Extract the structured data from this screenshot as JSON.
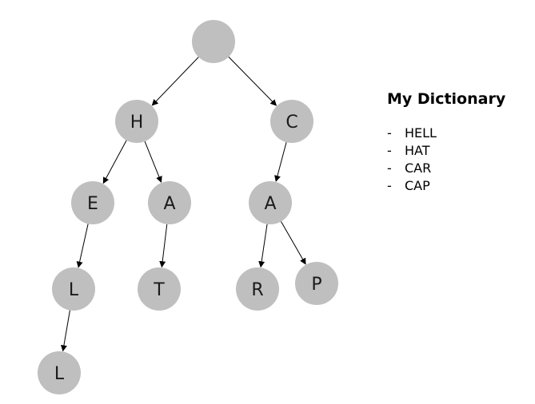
{
  "diagram": {
    "nodes": [
      {
        "id": "root",
        "label": ""
      },
      {
        "id": "h",
        "label": "H"
      },
      {
        "id": "c",
        "label": "C"
      },
      {
        "id": "e",
        "label": "E"
      },
      {
        "id": "a1",
        "label": "A"
      },
      {
        "id": "a2",
        "label": "A"
      },
      {
        "id": "l1",
        "label": "L"
      },
      {
        "id": "t",
        "label": "T"
      },
      {
        "id": "r",
        "label": "R"
      },
      {
        "id": "p",
        "label": "P"
      },
      {
        "id": "l2",
        "label": "L"
      }
    ],
    "edges": [
      {
        "from": "root",
        "to": "h"
      },
      {
        "from": "root",
        "to": "c"
      },
      {
        "from": "h",
        "to": "e"
      },
      {
        "from": "h",
        "to": "a1"
      },
      {
        "from": "c",
        "to": "a2"
      },
      {
        "from": "e",
        "to": "l1"
      },
      {
        "from": "a1",
        "to": "t"
      },
      {
        "from": "a2",
        "to": "r"
      },
      {
        "from": "a2",
        "to": "p"
      },
      {
        "from": "l1",
        "to": "l2"
      }
    ]
  },
  "legend": {
    "title": "My Dictionary",
    "bullet": "-",
    "items": [
      "HELL",
      "HAT",
      "CAR",
      "CAP"
    ]
  },
  "colors": {
    "node_fill": "#bfbfbf",
    "edge": "#000000",
    "text": "#1a1a1a"
  }
}
